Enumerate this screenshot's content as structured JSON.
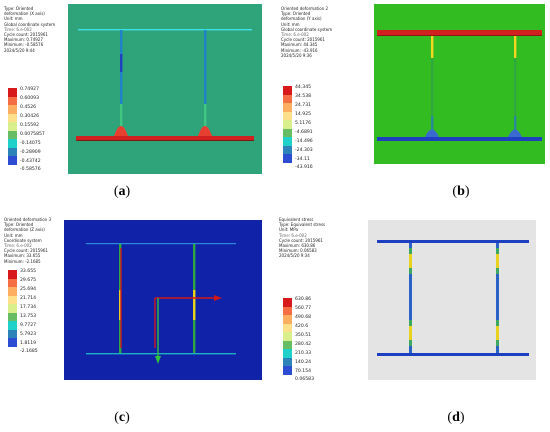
{
  "panels": [
    {
      "id": "a",
      "background": "#2fa37a",
      "info": [
        "Type: Oriented",
        "deformation (X axis)",
        "Unit: mm",
        "Global coordinate system",
        "Time: 6.e-002",
        "Cycle count: 2015961",
        "Maximum: 0.74927",
        "Minimum: -0.58576",
        "2024/5/20 9:44"
      ],
      "header": "",
      "legend": [
        "0.74927",
        "0.60093",
        "0.4526",
        "0.30426",
        "0.15592",
        "0.0075857",
        "-0.14075",
        "-0.28909",
        "-0.43742",
        "-0.58576"
      ]
    },
    {
      "id": "b",
      "background": "#33bb22",
      "header": "Oriented deformation 2",
      "info": [
        "Type: Oriented",
        "deformation (Y axis)",
        "Unit: mm",
        "Global coordinate system",
        "Time: 6.e-002",
        "Cycle count: 2015961",
        "Maximum: 44.345",
        "Minimum: -43.916",
        "2024/5/20 9:36"
      ],
      "legend": [
        "44.345",
        "34.538",
        "24.731",
        "14.925",
        "5.1176",
        "-4.6891",
        "-14.496",
        "-24.303",
        "-34.11",
        "-43.916"
      ]
    },
    {
      "id": "c",
      "background": "#0f22a8",
      "header": "Oriented deformation 3",
      "info": [
        "Type: Oriented",
        "deformation (Z axis)",
        "Unit: mm",
        "Coordinate system",
        "Time: 6.e-002",
        "Cycle count: 2015961",
        "Maximum: 33.655",
        "Minimum: -2.1685"
      ],
      "legend": [
        "33.655",
        "29.675",
        "25.694",
        "21.714",
        "17.734",
        "13.753",
        "9.7727",
        "5.7923",
        "1.8119",
        "-2.1685"
      ]
    },
    {
      "id": "d",
      "background": "#e4e4e4",
      "header": "Equivalent stress",
      "info": [
        "Type: Equivalent stress",
        "Unit: MPa",
        "Time: 6.e-002",
        "Cycle count: 2015961",
        "Maximum: 630.86",
        "Minimum: 0.06583",
        "2024/5/20 9:34"
      ],
      "legend": [
        "630.86",
        "560.77",
        "490.68",
        "420.6",
        "350.51",
        "280.42",
        "210.33",
        "140.24",
        "70.154",
        "0.06583"
      ]
    }
  ],
  "legend_colors": [
    "#d7191c",
    "#f46d43",
    "#fdae61",
    "#fee08b",
    "#d9ef8b",
    "#66bd63",
    "#1fd1c9",
    "#2b83ba",
    "#2c4dd1",
    "#1a1aa6"
  ],
  "captions": [
    "(a)",
    "(b)",
    "(c)",
    "(d)"
  ],
  "caption_letters": [
    "a",
    "b",
    "c",
    "d"
  ]
}
